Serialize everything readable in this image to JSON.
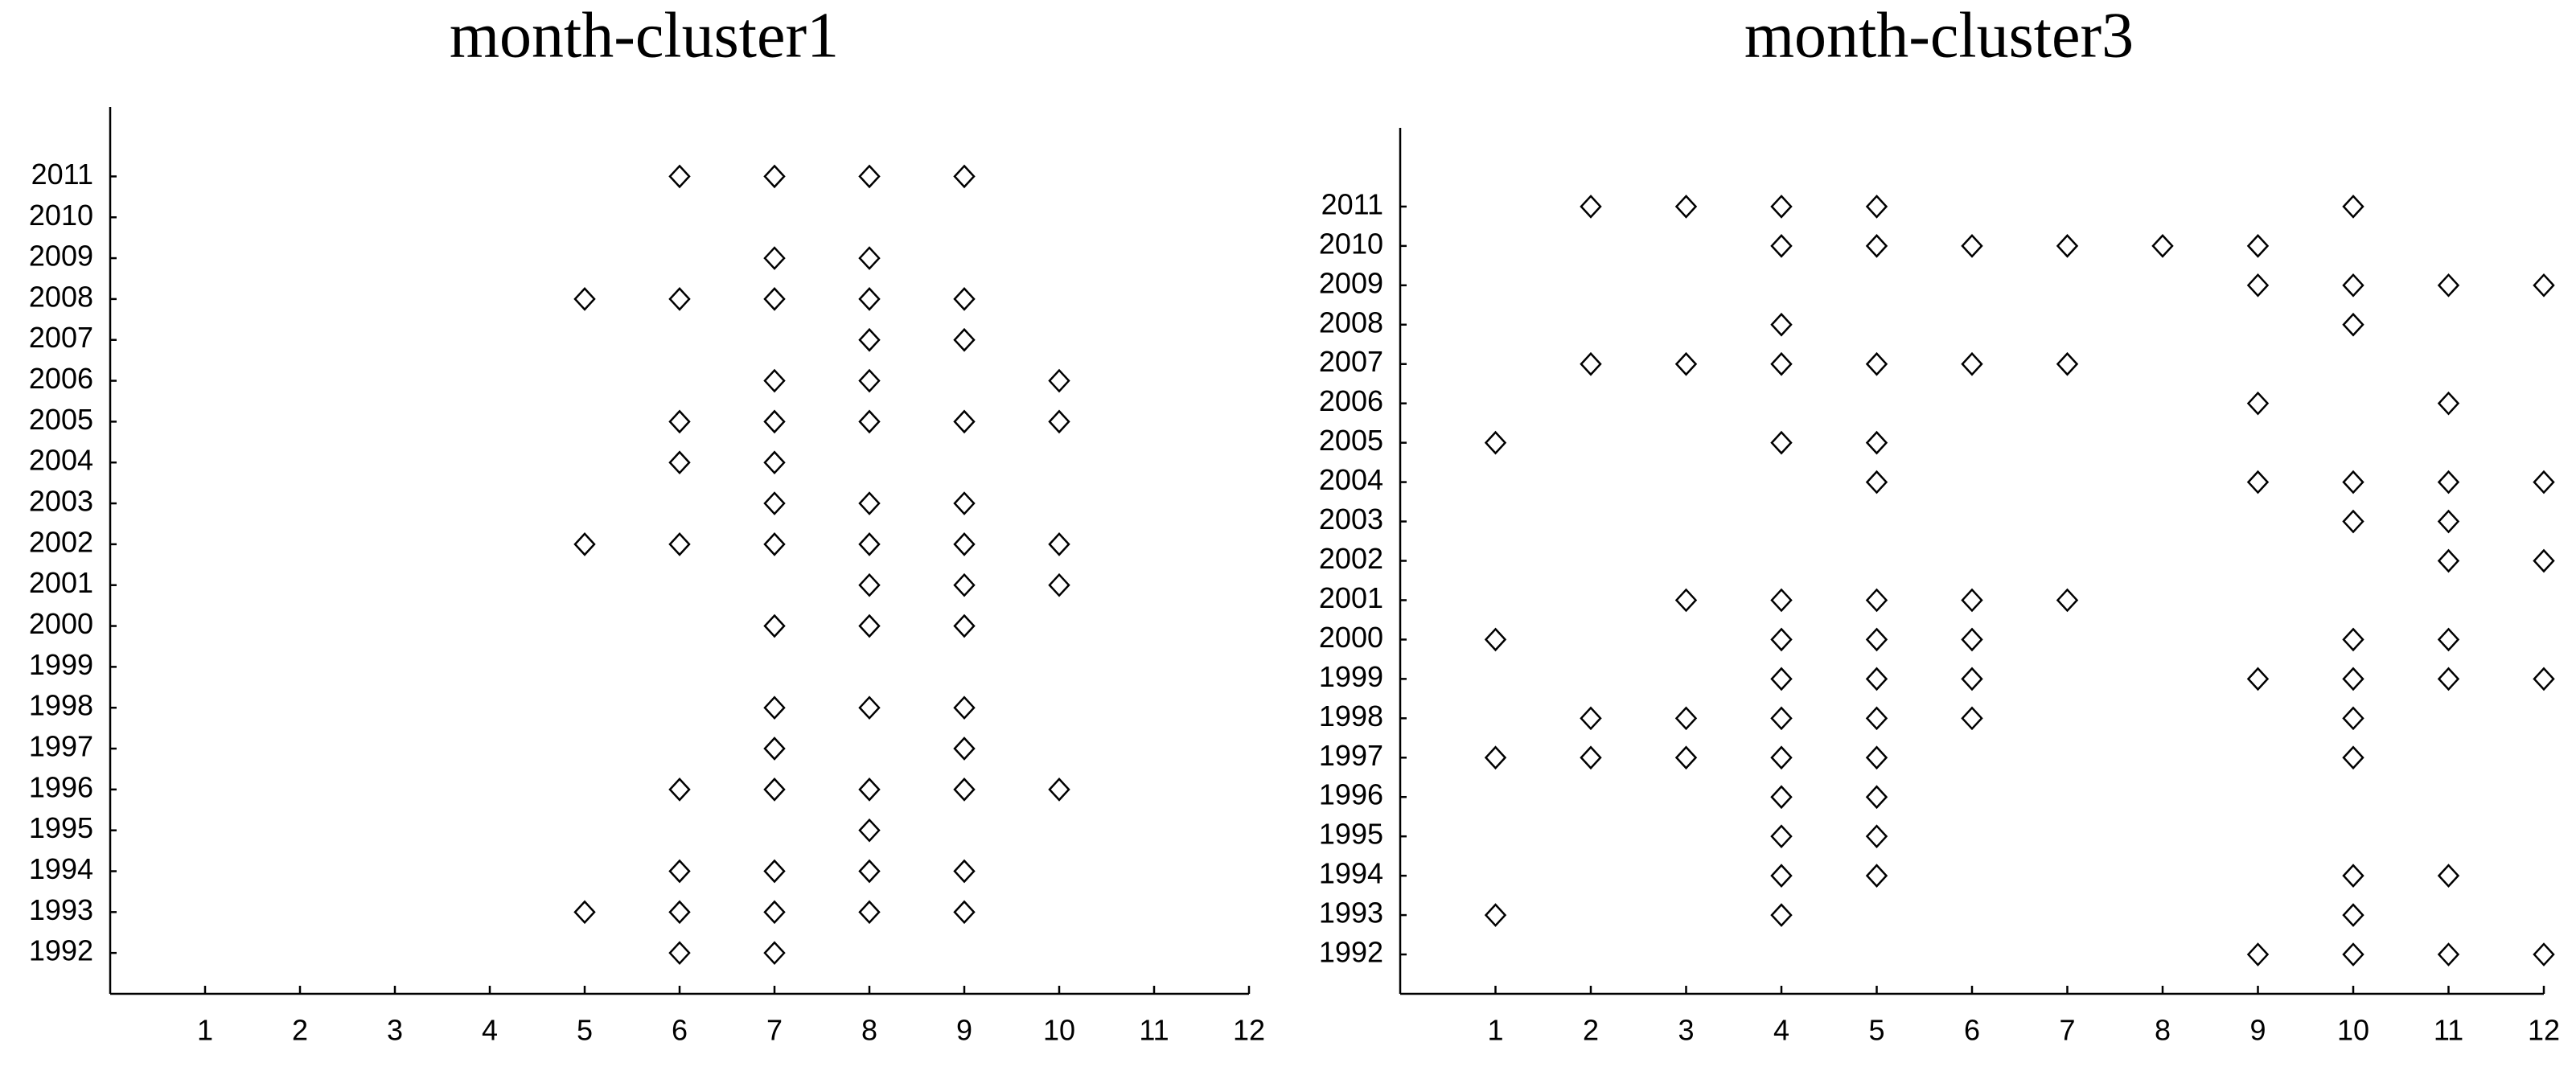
{
  "chart_data": [
    {
      "type": "scatter",
      "title": "month-cluster1",
      "x": [
        6,
        7,
        8,
        9,
        7,
        8,
        5,
        6,
        7,
        8,
        9,
        8,
        9,
        7,
        8,
        10,
        6,
        7,
        8,
        9,
        10,
        6,
        7,
        7,
        8,
        9,
        5,
        6,
        7,
        8,
        9,
        10,
        8,
        9,
        10,
        7,
        8,
        9,
        7,
        8,
        9,
        7,
        9,
        6,
        7,
        8,
        9,
        10,
        8,
        6,
        7,
        8,
        9,
        5,
        6,
        7,
        8,
        9,
        6,
        7
      ],
      "values": [
        2011,
        2011,
        2011,
        2011,
        2009,
        2009,
        2008,
        2008,
        2008,
        2008,
        2008,
        2007,
        2007,
        2006,
        2006,
        2006,
        2005,
        2005,
        2005,
        2005,
        2005,
        2004,
        2004,
        2003,
        2003,
        2003,
        2002,
        2002,
        2002,
        2002,
        2002,
        2002,
        2001,
        2001,
        2001,
        2000,
        2000,
        2000,
        1998,
        1998,
        1998,
        1997,
        1997,
        1996,
        1996,
        1996,
        1996,
        1996,
        1995,
        1994,
        1994,
        1994,
        1994,
        1993,
        1993,
        1993,
        1993,
        1993,
        1992,
        1992
      ],
      "xlim": [
        0,
        12
      ],
      "ylim": [
        1991,
        2012.7
      ],
      "xticks": [
        1,
        2,
        3,
        4,
        5,
        6,
        7,
        8,
        9,
        10,
        11,
        12
      ],
      "yticks": [
        1992,
        1993,
        1994,
        1995,
        1996,
        1997,
        1998,
        1999,
        2000,
        2001,
        2002,
        2003,
        2004,
        2005,
        2006,
        2007,
        2008,
        2009,
        2010,
        2011
      ],
      "color": "#000000"
    },
    {
      "type": "scatter",
      "title": "month-cluster3",
      "x": [
        2,
        3,
        4,
        5,
        10,
        4,
        5,
        6,
        7,
        8,
        9,
        9,
        10,
        11,
        12,
        4,
        10,
        2,
        3,
        4,
        5,
        6,
        7,
        9,
        11,
        1,
        4,
        5,
        5,
        9,
        10,
        11,
        12,
        10,
        11,
        11,
        12,
        3,
        4,
        5,
        6,
        7,
        1,
        4,
        5,
        6,
        10,
        11,
        4,
        5,
        6,
        9,
        10,
        11,
        12,
        2,
        3,
        4,
        5,
        6,
        10,
        1,
        2,
        3,
        4,
        5,
        10,
        4,
        5,
        4,
        5,
        4,
        5,
        10,
        11,
        1,
        4,
        10,
        9,
        10,
        11,
        12
      ],
      "values": [
        2011,
        2011,
        2011,
        2011,
        2011,
        2010,
        2010,
        2010,
        2010,
        2010,
        2010,
        2009,
        2009,
        2009,
        2009,
        2008,
        2008,
        2007,
        2007,
        2007,
        2007,
        2007,
        2007,
        2006,
        2006,
        2005,
        2005,
        2005,
        2004,
        2004,
        2004,
        2004,
        2004,
        2003,
        2003,
        2002,
        2002,
        2001,
        2001,
        2001,
        2001,
        2001,
        2000,
        2000,
        2000,
        2000,
        2000,
        2000,
        1999,
        1999,
        1999,
        1999,
        1999,
        1999,
        1999,
        1998,
        1998,
        1998,
        1998,
        1998,
        1998,
        1997,
        1997,
        1997,
        1997,
        1997,
        1997,
        1996,
        1996,
        1995,
        1995,
        1994,
        1994,
        1994,
        1994,
        1993,
        1993,
        1993,
        1992,
        1992,
        1992,
        1992
      ],
      "xlim": [
        0,
        12
      ],
      "ylim": [
        1991,
        2013
      ],
      "xticks": [
        1,
        2,
        3,
        4,
        5,
        6,
        7,
        8,
        9,
        10,
        11,
        12
      ],
      "yticks": [
        1992,
        1993,
        1994,
        1995,
        1996,
        1997,
        1998,
        1999,
        2000,
        2001,
        2002,
        2003,
        2004,
        2005,
        2006,
        2007,
        2008,
        2009,
        2010,
        2011
      ],
      "color": "#000000"
    }
  ]
}
